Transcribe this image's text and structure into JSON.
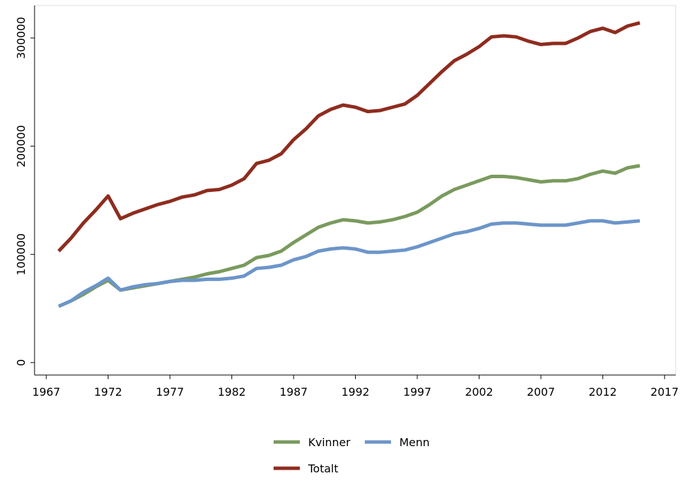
{
  "chart_data": {
    "type": "line",
    "x": [
      1968,
      1969,
      1970,
      1971,
      1972,
      1973,
      1974,
      1975,
      1976,
      1977,
      1978,
      1979,
      1980,
      1981,
      1982,
      1983,
      1984,
      1985,
      1986,
      1987,
      1988,
      1989,
      1990,
      1991,
      1992,
      1993,
      1994,
      1995,
      1996,
      1997,
      1998,
      1999,
      2000,
      2001,
      2002,
      2003,
      2004,
      2005,
      2006,
      2007,
      2008,
      2009,
      2010,
      2011,
      2012,
      2013,
      2014,
      2015
    ],
    "series": [
      {
        "name": "Kvinner",
        "color": "#7a9a5e",
        "values": [
          52000,
          57000,
          63000,
          70000,
          76000,
          67000,
          69000,
          71000,
          73000,
          75000,
          77000,
          79000,
          82000,
          84000,
          87000,
          90000,
          97000,
          99000,
          103000,
          111000,
          118000,
          125000,
          129000,
          132000,
          131000,
          129000,
          130000,
          132000,
          135000,
          139000,
          146000,
          154000,
          160000,
          164000,
          168000,
          172000,
          172000,
          171000,
          169000,
          167000,
          168000,
          168000,
          170000,
          174000,
          177000,
          175000,
          180000,
          182000
        ]
      },
      {
        "name": "Menn",
        "color": "#6c95c9",
        "values": [
          52000,
          57000,
          65000,
          71000,
          78000,
          67000,
          70000,
          72000,
          73000,
          75000,
          76000,
          76000,
          77000,
          77000,
          78000,
          80000,
          87000,
          88000,
          90000,
          95000,
          98000,
          103000,
          105000,
          106000,
          105000,
          102000,
          102000,
          103000,
          104000,
          107000,
          111000,
          115000,
          119000,
          121000,
          124000,
          128000,
          129000,
          129000,
          128000,
          127000,
          127000,
          127000,
          129000,
          131000,
          131000,
          129000,
          130000,
          131000
        ]
      },
      {
        "name": "Totalt",
        "color": "#8e2c1f",
        "values": [
          103000,
          115000,
          129000,
          141000,
          154000,
          133000,
          138000,
          142000,
          146000,
          149000,
          153000,
          155000,
          159000,
          160000,
          164000,
          170000,
          184000,
          187000,
          193000,
          206000,
          216000,
          228000,
          234000,
          238000,
          236000,
          232000,
          233000,
          236000,
          239000,
          247000,
          258000,
          269000,
          279000,
          285000,
          292000,
          301000,
          302000,
          301000,
          297000,
          294000,
          295000,
          295000,
          300000,
          306000,
          309000,
          305000,
          311000,
          314000
        ]
      }
    ],
    "xlim": [
      1966.05,
      2017.9
    ],
    "xticks": [
      1967,
      1972,
      1977,
      1982,
      1987,
      1992,
      1997,
      2002,
      2007,
      2012,
      2017
    ],
    "ylim": [
      -11500,
      330000
    ],
    "yticks": [
      0,
      100000,
      200000,
      300000
    ]
  }
}
